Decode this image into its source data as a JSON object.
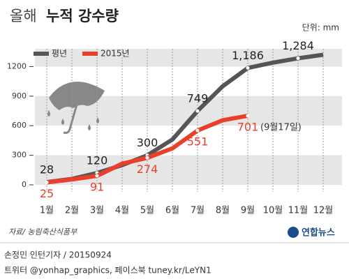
{
  "chart_data": {
    "type": "line",
    "title": [
      "올해",
      "누적 강수량"
    ],
    "unit": "단위: mm",
    "categories": [
      "1월",
      "2월",
      "3월",
      "4월",
      "5월",
      "6월",
      "7월",
      "8월",
      "9월",
      "10월",
      "11월",
      "12월"
    ],
    "series": [
      {
        "name": "평년",
        "color": "#555555",
        "values": [
          28,
          60,
          120,
          200,
          300,
          460,
          749,
          1000,
          1186,
          1240,
          1284,
          1320
        ],
        "value_labels": [
          "28",
          null,
          "120",
          null,
          "300",
          null,
          "749",
          null,
          "1,186",
          null,
          "1,284",
          null
        ]
      },
      {
        "name": "2015년",
        "color": "#e8402a",
        "values": [
          25,
          55,
          91,
          215,
          274,
          370,
          551,
          655,
          701,
          null,
          null,
          null
        ],
        "value_labels": [
          "25",
          null,
          "91",
          null,
          "274",
          null,
          "551",
          null,
          "701",
          null,
          null,
          null
        ]
      }
    ],
    "annotation": "(9월17일)",
    "ylim": [
      0,
      1380
    ],
    "yticks": [
      0,
      300,
      600,
      900,
      1200
    ],
    "grid": true,
    "source": "자료/ 농림축산식품부",
    "logo": "연합뉴스",
    "credit": "손정민 인턴기자 / 20150924",
    "social": "트위터 @yonhap_graphics, 페이스북 tuney.kr/LeYN1"
  }
}
